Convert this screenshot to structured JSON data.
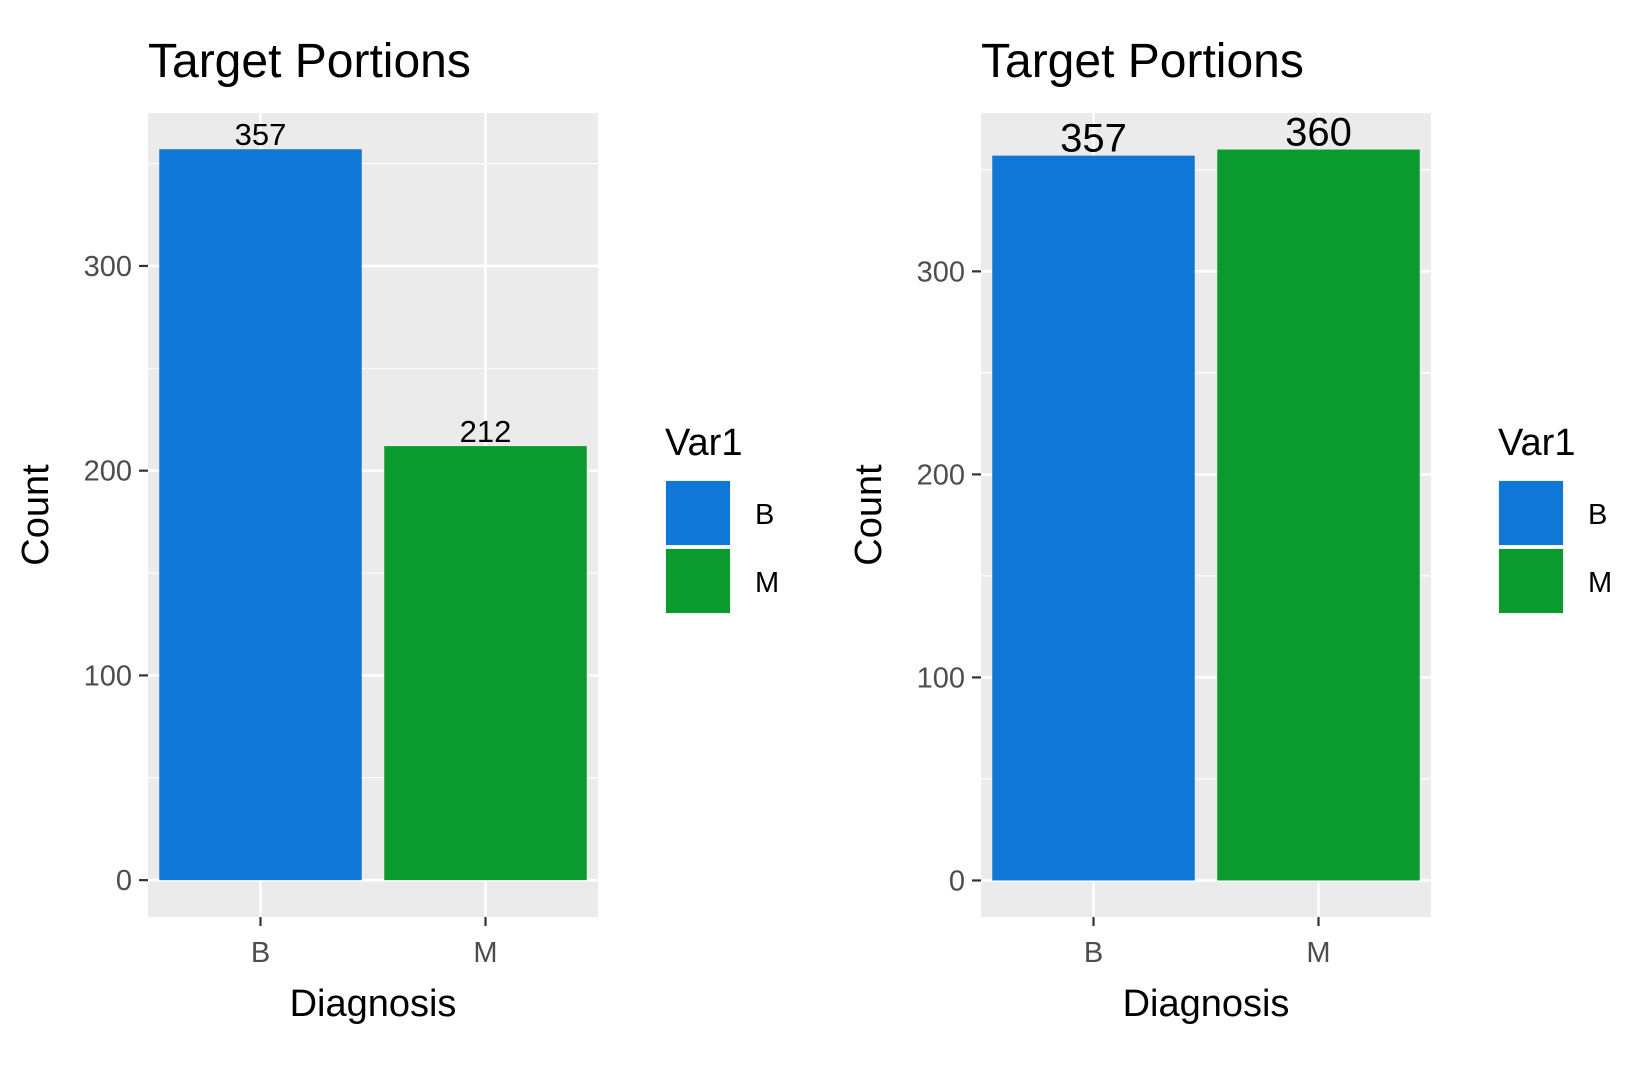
{
  "colors": {
    "panel_background": "#ebebeb",
    "grid_line": "#ffffff",
    "tick_text": "#4d4d4d",
    "axis_tick": "#333333",
    "text": "#000000",
    "B": "#0f78d7",
    "M": "#0b9a2d"
  },
  "chart_data": [
    {
      "type": "bar",
      "title": "Target Portions",
      "xlabel": "Diagnosis",
      "ylabel": "Count",
      "categories": [
        "B",
        "M"
      ],
      "values": [
        357,
        212
      ],
      "data_labels": [
        "357",
        "212"
      ],
      "ylim": [
        -18,
        374.7
      ],
      "yticks": [
        0,
        100,
        200,
        300
      ],
      "ytick_labels": [
        "0",
        "100",
        "200",
        "300"
      ],
      "grid": true,
      "legend": {
        "title": "Var1",
        "entries": [
          "B",
          "M"
        ],
        "position": "right"
      }
    },
    {
      "type": "bar",
      "title": "Target Portions",
      "xlabel": "Diagnosis",
      "ylabel": "Count",
      "categories": [
        "B",
        "M"
      ],
      "values": [
        357,
        360
      ],
      "data_labels": [
        "357",
        "360"
      ],
      "ylim": [
        -18,
        378
      ],
      "yticks": [
        0,
        100,
        200,
        300
      ],
      "ytick_labels": [
        "0",
        "100",
        "200",
        "300"
      ],
      "grid": true,
      "legend": {
        "title": "Var1",
        "entries": [
          "B",
          "M"
        ],
        "position": "right"
      }
    }
  ]
}
